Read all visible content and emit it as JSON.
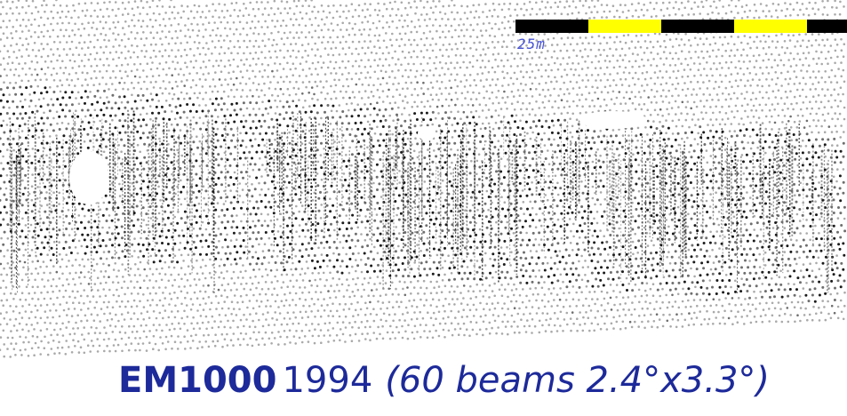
{
  "image": {
    "subject": "multibeam-bathymetry-point-cloud",
    "colors": {
      "dot_dark": "#1a1a1a",
      "dot_mid": "#6e6e6e",
      "dot_light": "#a9a9a9",
      "background": "#ffffff"
    }
  },
  "scale_bar": {
    "label": "25m",
    "colors": [
      "#000000",
      "#ffff00",
      "#000000",
      "#ffff00",
      "#000000"
    ],
    "label_color": "#4a55d8"
  },
  "caption": {
    "model": "EM1000",
    "year": "1994",
    "spec": "(60 beams 2.4°x3.3°)",
    "color": "#1d2a9a"
  }
}
